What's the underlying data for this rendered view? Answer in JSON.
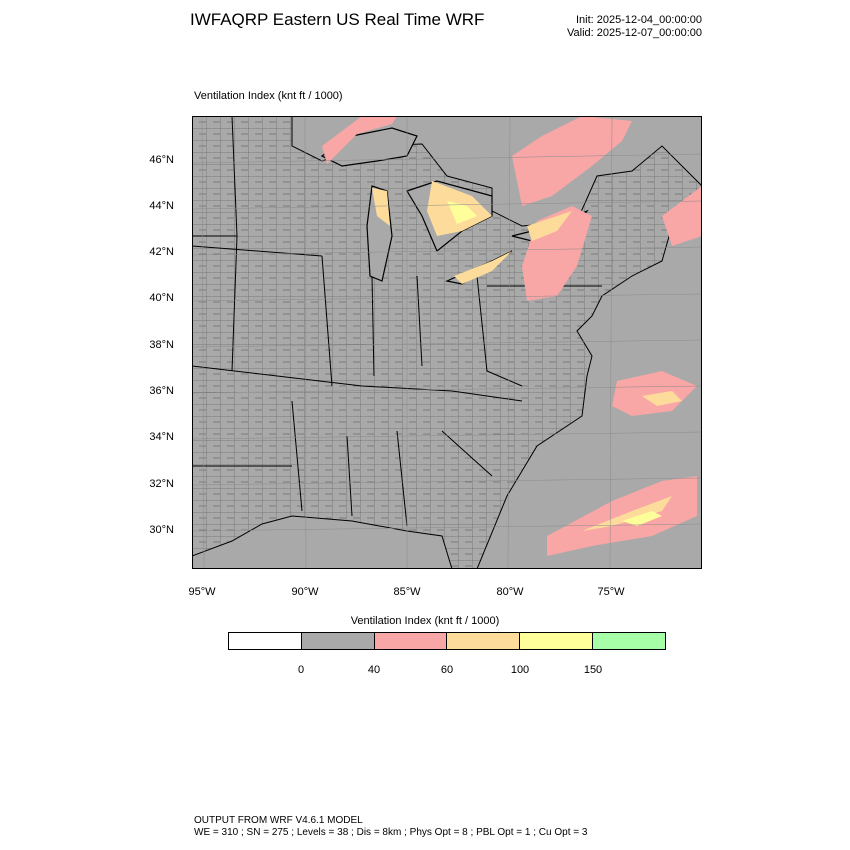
{
  "header": {
    "title": "IWFAQRP Eastern US Real Time WRF",
    "init": "Init: 2025-12-04_00:00:00",
    "valid": "Valid: 2025-12-07_00:00:00"
  },
  "map": {
    "field_label": "Ventilation Index   (knt ft / 1000)",
    "background_color": "#a9a9a9",
    "lat_labels": [
      "46°N",
      "44°N",
      "42°N",
      "40°N",
      "38°N",
      "36°N",
      "34°N",
      "32°N",
      "30°N"
    ],
    "lon_labels": [
      "95°W",
      "90°W",
      "85°W",
      "80°W",
      "75°W"
    ],
    "categories": {
      "40_60": "#f9a6a6",
      "60_100": "#fddc9b",
      "100_150": "#feff9b"
    }
  },
  "colorbar": {
    "title": "Ventilation Index  (knt ft / 1000)",
    "colors": [
      "#ffffff",
      "#a9a9a9",
      "#f9a6a6",
      "#fddc9b",
      "#feff9b",
      "#a6ffa6"
    ],
    "tick_labels": [
      "0",
      "40",
      "60",
      "100",
      "150"
    ]
  },
  "footer": {
    "line1": "OUTPUT FROM WRF V4.6.1 MODEL",
    "line2": "WE = 310 ; SN = 275 ; Levels = 38 ; Dis = 8km ; Phys Opt = 8 ; PBL Opt = 1 ; Cu Opt = 3"
  }
}
